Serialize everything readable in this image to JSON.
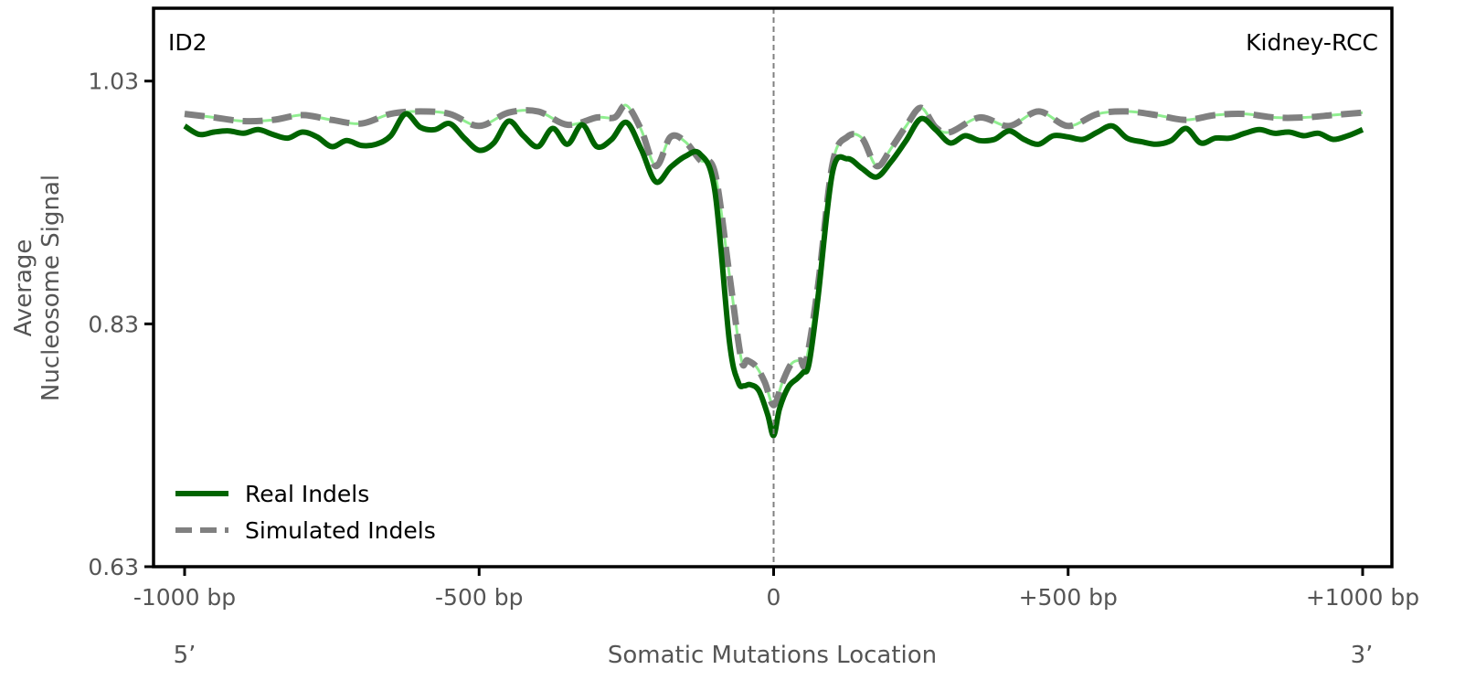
{
  "chart_data": {
    "type": "line",
    "title": "",
    "xlabel": "Somatic Mutations Location",
    "ylabel_lines": [
      "Average",
      "Nucleosome Signal"
    ],
    "signature_label": "ID2",
    "tissue_label": "Kidney-RCC",
    "xlim": [
      -1000,
      1000
    ],
    "ylim": [
      0.63,
      1.09
    ],
    "xticks": [
      {
        "value": -1000,
        "label": "-1000 bp"
      },
      {
        "value": -500,
        "label": "-500 bp"
      },
      {
        "value": 0,
        "label": "0"
      },
      {
        "value": 500,
        "label": "+500 bp"
      },
      {
        "value": 1000,
        "label": "+1000 bp"
      }
    ],
    "yticks": [
      {
        "value": 0.63,
        "label": "0.63"
      },
      {
        "value": 0.83,
        "label": "0.83"
      },
      {
        "value": 1.03,
        "label": "1.03"
      }
    ],
    "end_labels": {
      "left": "5’",
      "right": "3’"
    },
    "center_line": 0,
    "grid": false,
    "legend_position": "lower-left",
    "colors": {
      "real": "#006400",
      "simulated": "#808080",
      "simulated_highlight": "#90EE90",
      "center_line": "#808080"
    },
    "series": [
      {
        "name": "Real Indels",
        "style": "solid",
        "x": [
          -1000,
          -975,
          -950,
          -925,
          -900,
          -875,
          -850,
          -825,
          -800,
          -775,
          -750,
          -725,
          -700,
          -675,
          -650,
          -625,
          -600,
          -575,
          -550,
          -525,
          -500,
          -475,
          -450,
          -425,
          -400,
          -375,
          -350,
          -325,
          -300,
          -275,
          -250,
          -225,
          -200,
          -175,
          -150,
          -125,
          -100,
          -75,
          -60,
          -50,
          -40,
          -25,
          -10,
          0,
          10,
          25,
          40,
          50,
          60,
          75,
          100,
          125,
          150,
          175,
          200,
          225,
          250,
          275,
          300,
          325,
          350,
          375,
          400,
          425,
          450,
          475,
          500,
          525,
          550,
          575,
          600,
          625,
          650,
          675,
          700,
          725,
          750,
          775,
          800,
          825,
          850,
          875,
          900,
          925,
          950,
          975,
          1000
        ],
        "y": [
          0.993,
          0.986,
          0.988,
          0.989,
          0.987,
          0.99,
          0.986,
          0.983,
          0.988,
          0.984,
          0.976,
          0.981,
          0.977,
          0.978,
          0.985,
          1.003,
          0.992,
          0.99,
          0.995,
          0.983,
          0.973,
          0.979,
          0.997,
          0.985,
          0.976,
          0.991,
          0.978,
          0.994,
          0.976,
          0.982,
          0.996,
          0.974,
          0.947,
          0.959,
          0.968,
          0.97,
          0.94,
          0.815,
          0.782,
          0.779,
          0.78,
          0.775,
          0.755,
          0.738,
          0.76,
          0.778,
          0.785,
          0.79,
          0.797,
          0.85,
          0.955,
          0.966,
          0.958,
          0.951,
          0.964,
          0.981,
          0.999,
          0.99,
          0.979,
          0.985,
          0.981,
          0.982,
          0.989,
          0.982,
          0.978,
          0.985,
          0.984,
          0.982,
          0.988,
          0.993,
          0.983,
          0.98,
          0.978,
          0.981,
          0.991,
          0.979,
          0.983,
          0.983,
          0.987,
          0.99,
          0.987,
          0.988,
          0.985,
          0.987,
          0.982,
          0.985,
          0.99
        ]
      },
      {
        "name": "Simulated Indels",
        "style": "dashed",
        "x": [
          -1000,
          -950,
          -900,
          -850,
          -800,
          -750,
          -700,
          -650,
          -600,
          -550,
          -500,
          -450,
          -400,
          -350,
          -300,
          -270,
          -250,
          -225,
          -200,
          -175,
          -150,
          -125,
          -100,
          -75,
          -55,
          -45,
          -30,
          -15,
          0,
          15,
          30,
          45,
          55,
          75,
          100,
          125,
          150,
          175,
          200,
          225,
          250,
          275,
          300,
          350,
          400,
          450,
          500,
          550,
          600,
          650,
          700,
          750,
          800,
          850,
          900,
          950,
          1000
        ],
        "y": [
          1.003,
          1.0,
          0.997,
          0.998,
          1.002,
          0.998,
          0.995,
          1.003,
          1.005,
          1.003,
          0.993,
          1.004,
          1.005,
          0.994,
          1.0,
          1.0,
          1.01,
          0.99,
          0.96,
          0.984,
          0.98,
          0.965,
          0.955,
          0.87,
          0.801,
          0.8,
          0.795,
          0.782,
          0.763,
          0.782,
          0.797,
          0.8,
          0.799,
          0.86,
          0.962,
          0.984,
          0.983,
          0.96,
          0.975,
          0.993,
          1.008,
          0.992,
          0.988,
          1.0,
          0.993,
          1.005,
          0.993,
          1.003,
          1.005,
          1.002,
          0.998,
          1.002,
          1.003,
          1.0,
          1.0,
          1.002,
          1.004
        ]
      }
    ]
  }
}
